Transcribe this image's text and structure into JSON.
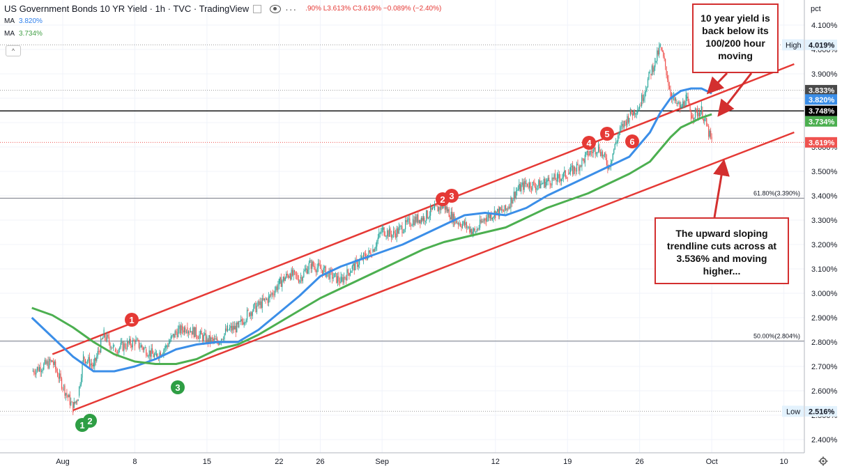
{
  "header": {
    "title": "US Government Bonds 10 YR Yield · 1h · TVC · TradingView",
    "ohlc_text": ".90% L3.613% C3.619% −0.089% (−2.40%)",
    "ma1_label": "MA",
    "ma1_value": "3.820%",
    "ma2_label": "MA",
    "ma2_value": "3.734%",
    "collapse_glyph": "^"
  },
  "axis": {
    "unit_label": "pct",
    "y_ticks": [
      "4.100%",
      "4.000%",
      "3.900%",
      "3.800%",
      "3.700%",
      "3.600%",
      "3.500%",
      "3.400%",
      "3.300%",
      "3.200%",
      "3.100%",
      "3.000%",
      "2.900%",
      "2.800%",
      "2.700%",
      "2.600%",
      "2.500%",
      "2.400%"
    ],
    "x_ticks": [
      "Aug",
      "8",
      "15",
      "22",
      "26",
      "Sep",
      "12",
      "19",
      "26",
      "Oct",
      "10"
    ]
  },
  "price_labels": {
    "high_label": "High",
    "high_value": "4.019%",
    "low_label": "Low",
    "low_value": "2.516%",
    "level_833": "3.833%",
    "ma_blue": "3.820%",
    "level_748": "3.748%",
    "ma_green": "3.734%",
    "last": "3.619%"
  },
  "fib": {
    "f618": "61.80%(3.390%)",
    "f50": "50.00%(2.804%)"
  },
  "markers": {
    "red": [
      "1",
      "2",
      "3",
      "4",
      "5",
      "6"
    ],
    "green": [
      "1",
      "2",
      "3"
    ]
  },
  "annotations": {
    "top_box": "10 year yield is back below its 100/200 hour moving",
    "bottom_box": "The upward sloping trendline cuts across at 3.536% and moving higher..."
  },
  "colors": {
    "up": "#26a69a",
    "down": "#ef5350",
    "ma_blue": "#3b8ee8",
    "ma_green": "#4caf50",
    "trend": "#e53935",
    "annotation": "#d32f2f"
  },
  "chart_data": {
    "type": "line",
    "title": "US Government Bonds 10 YR Yield",
    "ylabel": "pct",
    "ylim": [
      2.38,
      4.14
    ],
    "x_range": [
      "2022-07-29",
      "2022-10-11"
    ],
    "candles": [
      [
        "2022-07-29",
        2.68
      ],
      [
        "2022-07-31",
        2.72
      ],
      [
        "2022-08-01",
        2.62
      ],
      [
        "2022-08-02",
        2.53
      ],
      [
        "2022-08-02T12",
        2.58
      ],
      [
        "2022-08-03",
        2.74
      ],
      [
        "2022-08-04",
        2.7
      ],
      [
        "2022-08-05",
        2.83
      ],
      [
        "2022-08-06",
        2.77
      ],
      [
        "2022-08-08",
        2.8
      ],
      [
        "2022-08-09",
        2.77
      ],
      [
        "2022-08-10",
        2.74
      ],
      [
        "2022-08-11",
        2.78
      ],
      [
        "2022-08-12",
        2.84
      ],
      [
        "2022-08-13",
        2.86
      ],
      [
        "2022-08-15",
        2.81
      ],
      [
        "2022-08-16",
        2.8
      ],
      [
        "2022-08-17",
        2.85
      ],
      [
        "2022-08-18",
        2.86
      ],
      [
        "2022-08-19",
        2.92
      ],
      [
        "2022-08-21",
        2.98
      ],
      [
        "2022-08-22",
        3.04
      ],
      [
        "2022-08-23",
        3.08
      ],
      [
        "2022-08-24",
        3.06
      ],
      [
        "2022-08-25",
        3.12
      ],
      [
        "2022-08-26",
        3.1
      ],
      [
        "2022-08-28",
        3.05
      ],
      [
        "2022-08-29",
        3.1
      ],
      [
        "2022-08-30",
        3.14
      ],
      [
        "2022-08-31",
        3.17
      ],
      [
        "2022-09-01",
        3.26
      ],
      [
        "2022-09-02",
        3.24
      ],
      [
        "2022-09-04",
        3.3
      ],
      [
        "2022-09-05",
        3.31
      ],
      [
        "2022-09-06",
        3.34
      ],
      [
        "2022-09-07",
        3.36
      ],
      [
        "2022-09-08",
        3.3
      ],
      [
        "2022-09-09",
        3.28
      ],
      [
        "2022-09-10",
        3.25
      ],
      [
        "2022-09-11",
        3.31
      ],
      [
        "2022-09-12",
        3.33
      ],
      [
        "2022-09-13",
        3.34
      ],
      [
        "2022-09-14",
        3.42
      ],
      [
        "2022-09-15",
        3.45
      ],
      [
        "2022-09-16",
        3.44
      ],
      [
        "2022-09-17",
        3.46
      ],
      [
        "2022-09-18",
        3.47
      ],
      [
        "2022-09-19",
        3.49
      ],
      [
        "2022-09-20",
        3.52
      ],
      [
        "2022-09-21",
        3.57
      ],
      [
        "2022-09-22",
        3.6
      ],
      [
        "2022-09-23",
        3.52
      ],
      [
        "2022-09-24",
        3.66
      ],
      [
        "2022-09-25",
        3.73
      ],
      [
        "2022-09-26",
        3.77
      ],
      [
        "2022-09-27",
        3.9
      ],
      [
        "2022-09-27T12",
        3.95
      ],
      [
        "2022-09-28",
        4.01
      ],
      [
        "2022-09-28T12",
        3.93
      ],
      [
        "2022-09-29",
        3.82
      ],
      [
        "2022-09-29T12",
        3.78
      ],
      [
        "2022-09-30",
        3.76
      ],
      [
        "2022-09-30T12",
        3.8
      ],
      [
        "2022-10-01",
        3.73
      ],
      [
        "2022-10-02",
        3.75
      ],
      [
        "2022-10-03",
        3.619
      ]
    ],
    "series": [
      {
        "name": "MA (100)",
        "color": "#3b8ee8",
        "value": 3.82,
        "x": [
          "2022-07-29",
          "2022-07-31",
          "2022-08-02",
          "2022-08-04",
          "2022-08-06",
          "2022-08-08",
          "2022-08-10",
          "2022-08-12",
          "2022-08-14",
          "2022-08-16",
          "2022-08-18",
          "2022-08-20",
          "2022-08-22",
          "2022-08-24",
          "2022-08-26",
          "2022-08-28",
          "2022-08-30",
          "2022-09-01",
          "2022-09-03",
          "2022-09-05",
          "2022-09-07",
          "2022-09-09",
          "2022-09-11",
          "2022-09-13",
          "2022-09-15",
          "2022-09-17",
          "2022-09-19",
          "2022-09-21",
          "2022-09-23",
          "2022-09-25",
          "2022-09-27",
          "2022-09-28",
          "2022-09-29",
          "2022-09-30",
          "2022-10-01",
          "2022-10-02",
          "2022-10-03"
        ],
        "values": [
          2.9,
          2.82,
          2.74,
          2.68,
          2.68,
          2.7,
          2.73,
          2.77,
          2.79,
          2.8,
          2.8,
          2.85,
          2.92,
          2.99,
          3.07,
          3.11,
          3.14,
          3.17,
          3.2,
          3.24,
          3.28,
          3.32,
          3.33,
          3.32,
          3.35,
          3.4,
          3.44,
          3.48,
          3.52,
          3.56,
          3.66,
          3.74,
          3.8,
          3.83,
          3.84,
          3.84,
          3.82
        ]
      },
      {
        "name": "MA (200)",
        "color": "#4caf50",
        "value": 3.734,
        "x": [
          "2022-07-29",
          "2022-07-31",
          "2022-08-02",
          "2022-08-04",
          "2022-08-06",
          "2022-08-08",
          "2022-08-10",
          "2022-08-12",
          "2022-08-14",
          "2022-08-16",
          "2022-08-18",
          "2022-08-20",
          "2022-08-22",
          "2022-08-24",
          "2022-08-26",
          "2022-08-28",
          "2022-08-30",
          "2022-09-01",
          "2022-09-03",
          "2022-09-05",
          "2022-09-07",
          "2022-09-09",
          "2022-09-11",
          "2022-09-13",
          "2022-09-15",
          "2022-09-17",
          "2022-09-19",
          "2022-09-21",
          "2022-09-23",
          "2022-09-25",
          "2022-09-27",
          "2022-09-28",
          "2022-09-29",
          "2022-09-30",
          "2022-10-01",
          "2022-10-02",
          "2022-10-03"
        ],
        "values": [
          2.94,
          2.91,
          2.86,
          2.8,
          2.75,
          2.72,
          2.71,
          2.71,
          2.73,
          2.77,
          2.79,
          2.83,
          2.88,
          2.93,
          2.98,
          3.02,
          3.06,
          3.1,
          3.14,
          3.18,
          3.21,
          3.23,
          3.25,
          3.27,
          3.31,
          3.35,
          3.38,
          3.41,
          3.45,
          3.49,
          3.54,
          3.59,
          3.64,
          3.68,
          3.7,
          3.72,
          3.734
        ]
      },
      {
        "name": "Upper channel",
        "color": "#e53935",
        "x": [
          "2022-07-31",
          "2022-10-11"
        ],
        "values": [
          2.75,
          3.94
        ]
      },
      {
        "name": "Lower channel",
        "color": "#e53935",
        "x": [
          "2022-08-02",
          "2022-10-11"
        ],
        "values": [
          2.52,
          3.66
        ]
      }
    ],
    "levels": [
      {
        "label": "61.80%(3.390%)",
        "value": 3.39
      },
      {
        "label": "50.00%(2.804%)",
        "value": 2.804
      },
      {
        "label": "High",
        "value": 4.019
      },
      {
        "label": "Low",
        "value": 2.516
      },
      {
        "label": "3.833%",
        "value": 3.833
      },
      {
        "label": "3.748%",
        "value": 3.748
      }
    ],
    "annotations": [
      "10 year yield is back below its 100/200 hour moving",
      "The upward sloping trendline cuts across at 3.536% and moving higher..."
    ],
    "grid": true,
    "legend": "top-left"
  }
}
